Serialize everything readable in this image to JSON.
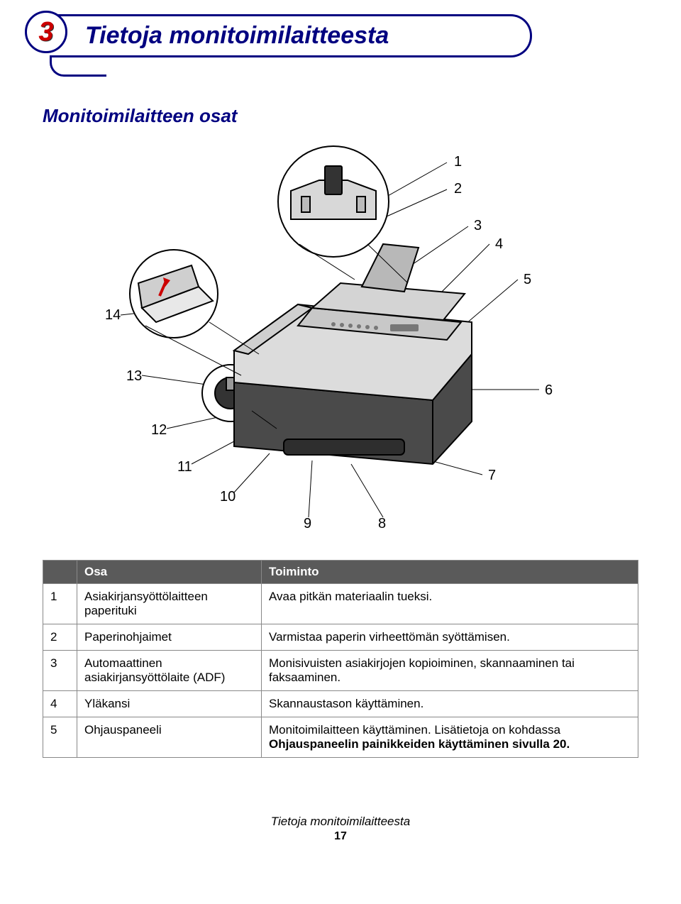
{
  "chapter": {
    "number": "3",
    "title": "Tietoja monitoimilaitteesta"
  },
  "section": {
    "title": "Monitoimilaitteen osat"
  },
  "callouts": {
    "n1": "1",
    "n2": "2",
    "n3": "3",
    "n4": "4",
    "n5": "5",
    "n6": "6",
    "n7": "7",
    "n8": "8",
    "n9": "9",
    "n10": "10",
    "n11": "11",
    "n12": "12",
    "n13": "13",
    "n14": "14"
  },
  "table": {
    "headers": {
      "num": "",
      "part": "Osa",
      "func": "Toiminto"
    },
    "rows": [
      {
        "num": "1",
        "part": "Asiakirjansyöttölaitteen paperituki",
        "func": "Avaa pitkän materiaalin tueksi."
      },
      {
        "num": "2",
        "part": "Paperinohjaimet",
        "func": "Varmistaa paperin virheettömän syöttämisen."
      },
      {
        "num": "3",
        "part": "Automaattinen asiakirjansyöttölaite (ADF)",
        "func": "Monisivuisten asiakirjojen kopioiminen, skannaaminen tai faksaaminen."
      },
      {
        "num": "4",
        "part": "Yläkansi",
        "func": "Skannaustason käyttäminen."
      },
      {
        "num": "5",
        "part": "Ohjauspaneeli",
        "func": "Monitoimilaitteen käyttäminen. Lisätietoja on kohdassa Ohjauspaneelin painikkeiden käyttäminen sivulla 20."
      }
    ]
  },
  "footer": {
    "title": "Tietoja monitoimilaitteesta",
    "page": "17"
  },
  "colors": {
    "brand": "#000080",
    "accent": "#cc0000",
    "header_bg": "#5a5a5a"
  }
}
